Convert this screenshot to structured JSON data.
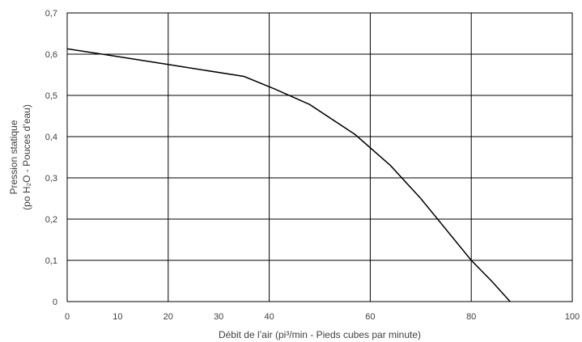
{
  "chart_data": {
    "type": "line",
    "xlabel": "Débit de l’air (pi³/min - Pieds cubes par minute)",
    "ylabel_line1": "Pression statique",
    "ylabel_line2": "(po  H₂O - Pouces d’eau)",
    "xlim": [
      0,
      100
    ],
    "ylim": [
      0,
      0.7
    ],
    "x_ticks": [
      0,
      20,
      40,
      60,
      80,
      100
    ],
    "x_tick_labels": [
      "0",
      "20",
      "40",
      "60",
      "80",
      "100"
    ],
    "x_minor_tick_labels": [
      {
        "value": 10,
        "label": "10"
      },
      {
        "value": 30,
        "label": "30"
      }
    ],
    "y_ticks": [
      0,
      0.1,
      0.2,
      0.3,
      0.4,
      0.5,
      0.6,
      0.7
    ],
    "y_tick_labels": [
      "0",
      "0,1",
      "0,2",
      "0,3",
      "0,4",
      "0,5",
      "0,6",
      "0,7"
    ],
    "grid": true,
    "series": [
      {
        "x": [
          0,
          8,
          20,
          35,
          41,
          48,
          57,
          64,
          70,
          80,
          84,
          87.7
        ],
        "y": [
          0.613,
          0.598,
          0.575,
          0.546,
          0.516,
          0.478,
          0.405,
          0.33,
          0.25,
          0.1,
          0.05,
          0
        ]
      }
    ],
    "colors": {
      "line": "#000000",
      "grid": "#000000",
      "text": "#404040"
    }
  }
}
